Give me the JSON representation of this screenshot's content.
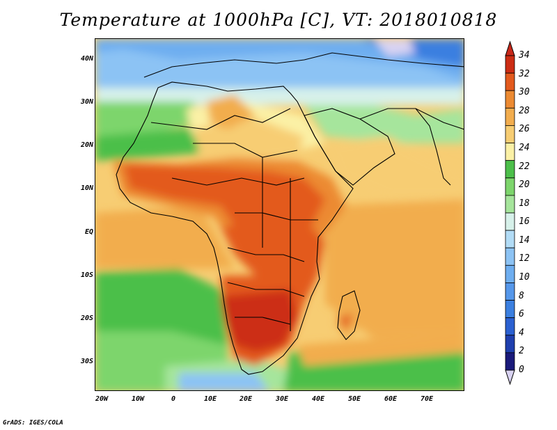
{
  "title": "Temperature at 1000hPa [C], VT: 2018010818",
  "footer": "GrADS: IGES/COLA",
  "map": {
    "lat_labels": [
      "40N",
      "30N",
      "20N",
      "10N",
      "EQ",
      "10S",
      "20S",
      "30S"
    ],
    "lon_labels": [
      "20W",
      "10W",
      "0",
      "10E",
      "20E",
      "30E",
      "40E",
      "50E",
      "60E",
      "70E"
    ]
  },
  "colorbar": {
    "labels": [
      "0",
      "2",
      "4",
      "6",
      "8",
      "10",
      "12",
      "14",
      "16",
      "18",
      "20",
      "22",
      "24",
      "26",
      "28",
      "30",
      "32",
      "34"
    ],
    "colors": [
      "#1a1a7a",
      "#1f3fae",
      "#2b60d1",
      "#3b7fe0",
      "#5597ea",
      "#6eaef0",
      "#8cc3f4",
      "#b2dcf6",
      "#d7f1ea",
      "#a6e59c",
      "#7dd56c",
      "#4cbf4a",
      "#fbf1a6",
      "#f7cd73",
      "#f2ad4e",
      "#ec8a32",
      "#e35a1e",
      "#cc2d14"
    ],
    "under_color": "#d9d3f2",
    "over_color": "#c8281a"
  }
}
